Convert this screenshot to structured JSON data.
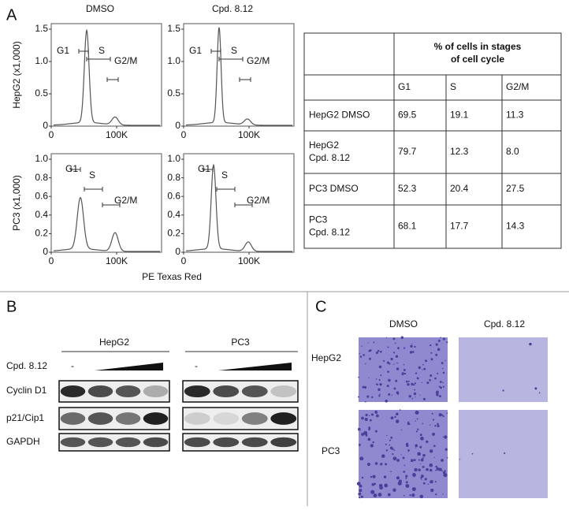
{
  "panel_a": {
    "label": "A",
    "histograms": {
      "columns": [
        "DMSO",
        "Cpd. 8.12"
      ],
      "rows": [
        {
          "y_label": "HepG2 (x1,000)",
          "yticks": [
            "0",
            "0.5",
            "1.0",
            "1.5"
          ]
        },
        {
          "y_label": "PC3 (x1,000)",
          "yticks": [
            "0",
            "0.2",
            "0.4",
            "0.6",
            "0.8",
            "1.0"
          ]
        }
      ],
      "xticks": [
        "0",
        "100K"
      ],
      "x_label": "PE Texas Red",
      "gates": [
        "G1",
        "S",
        "G2/M"
      ]
    },
    "table": {
      "header": "% of cells in stages of cell cycle",
      "columns": [
        "G1",
        "S",
        "G2/M"
      ],
      "rows": [
        {
          "name": "HepG2 DMSO",
          "cells": [
            "69.5",
            "19.1",
            "11.3"
          ]
        },
        {
          "name": "HepG2\nCpd. 8.12",
          "cells": [
            "79.7",
            "12.3",
            "8.0"
          ]
        },
        {
          "name": "PC3 DMSO",
          "cells": [
            "52.3",
            "20.4",
            "27.5"
          ]
        },
        {
          "name": "PC3\nCpd. 8.12",
          "cells": [
            "68.1",
            "17.7",
            "14.3"
          ]
        }
      ]
    }
  },
  "panel_b": {
    "label": "B",
    "cell_lines": [
      "HepG2",
      "PC3"
    ],
    "treatment": "Cpd. 8.12",
    "control": "-",
    "proteins": [
      "Cyclin D1",
      "p21/Cip1",
      "GAPDH"
    ]
  },
  "panel_c": {
    "label": "C",
    "columns": [
      "DMSO",
      "Cpd. 8.12"
    ],
    "rows": [
      "HepG2",
      "PC3"
    ]
  }
}
